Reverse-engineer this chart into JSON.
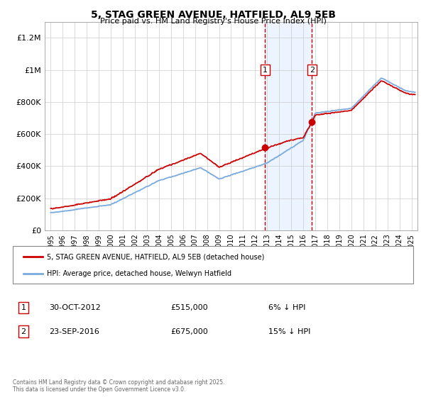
{
  "title": "5, STAG GREEN AVENUE, HATFIELD, AL9 5EB",
  "subtitle": "Price paid vs. HM Land Registry's House Price Index (HPI)",
  "ylabel_ticks": [
    "£0",
    "£200K",
    "£400K",
    "£600K",
    "£800K",
    "£1M",
    "£1.2M"
  ],
  "ylabel_values": [
    0,
    200000,
    400000,
    600000,
    800000,
    1000000,
    1200000
  ],
  "ylim": [
    0,
    1300000
  ],
  "xlim_start": 1994.5,
  "xlim_end": 2025.5,
  "red_line_color": "#cc0000",
  "blue_line_color": "#7aaadd",
  "sale1_x": 2012.83,
  "sale1_y": 515000,
  "sale1_label": "1",
  "sale1_date": "30-OCT-2012",
  "sale1_price": "£515,000",
  "sale1_note": "6% ↓ HPI",
  "sale2_x": 2016.73,
  "sale2_y": 675000,
  "sale2_label": "2",
  "sale2_date": "23-SEP-2016",
  "sale2_price": "£675,000",
  "sale2_note": "15% ↓ HPI",
  "shade_color": "#ddeeff",
  "shade_alpha": 0.55,
  "vline_color": "#cc0000",
  "marker_color": "#cc0000",
  "legend_red_label": "5, STAG GREEN AVENUE, HATFIELD, AL9 5EB (detached house)",
  "legend_blue_label": "HPI: Average price, detached house, Welwyn Hatfield",
  "footer_text": "Contains HM Land Registry data © Crown copyright and database right 2025.\nThis data is licensed under the Open Government Licence v3.0.",
  "background_color": "#ffffff",
  "grid_color": "#cccccc",
  "hpi_base": 110000,
  "hpi_segments": [
    [
      1995,
      110000
    ],
    [
      2000,
      160000
    ],
    [
      2004,
      310000
    ],
    [
      2007.5,
      390000
    ],
    [
      2009.0,
      320000
    ],
    [
      2013.0,
      420000
    ],
    [
      2016.0,
      560000
    ],
    [
      2017.0,
      730000
    ],
    [
      2020.0,
      760000
    ],
    [
      2022.5,
      950000
    ],
    [
      2024.5,
      870000
    ],
    [
      2025.3,
      860000
    ]
  ],
  "noise_scale_hpi": 4000,
  "noise_scale_red": 3000,
  "num_points": 500
}
